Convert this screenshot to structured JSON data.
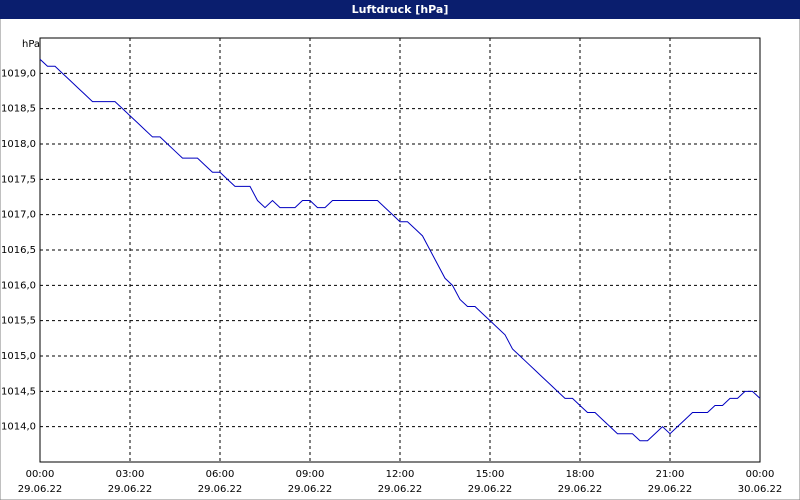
{
  "chart_data": {
    "type": "line",
    "title": "Luftdruck [hPa]",
    "y_unit": "hPa",
    "x": [
      0,
      0.25,
      0.5,
      0.75,
      1,
      1.25,
      1.5,
      1.75,
      2,
      2.25,
      2.5,
      2.75,
      3,
      3.25,
      3.5,
      3.75,
      4,
      4.25,
      4.5,
      4.75,
      5,
      5.25,
      5.5,
      5.75,
      6,
      6.25,
      6.5,
      6.75,
      7,
      7.25,
      7.5,
      7.75,
      8,
      8.25,
      8.5,
      8.75,
      9,
      9.25,
      9.5,
      9.75,
      10,
      10.25,
      10.5,
      10.75,
      11,
      11.25,
      11.5,
      11.75,
      12,
      12.25,
      12.5,
      12.75,
      13,
      13.25,
      13.5,
      13.75,
      14,
      14.25,
      14.5,
      14.75,
      15,
      15.25,
      15.5,
      15.75,
      16,
      16.25,
      16.5,
      16.75,
      17,
      17.25,
      17.5,
      17.75,
      18,
      18.25,
      18.5,
      18.75,
      19,
      19.25,
      19.5,
      19.75,
      20,
      20.25,
      20.5,
      20.75,
      21,
      21.25,
      21.5,
      21.75,
      22,
      22.25,
      22.5,
      22.75,
      23,
      23.25,
      23.5,
      23.75,
      24
    ],
    "series": [
      {
        "color": "#0000c0",
        "values": [
          1019.2,
          1019.1,
          1019.1,
          1019.0,
          1018.9,
          1018.8,
          1018.7,
          1018.6,
          1018.6,
          1018.6,
          1018.6,
          1018.5,
          1018.4,
          1018.3,
          1018.2,
          1018.1,
          1018.1,
          1018.0,
          1017.9,
          1017.8,
          1017.8,
          1017.8,
          1017.7,
          1017.6,
          1017.6,
          1017.5,
          1017.4,
          1017.4,
          1017.4,
          1017.2,
          1017.1,
          1017.2,
          1017.1,
          1017.1,
          1017.1,
          1017.2,
          1017.2,
          1017.1,
          1017.1,
          1017.2,
          1017.2,
          1017.2,
          1017.2,
          1017.2,
          1017.2,
          1017.2,
          1017.1,
          1017.0,
          1016.9,
          1016.9,
          1016.8,
          1016.7,
          1016.5,
          1016.3,
          1016.1,
          1016.0,
          1015.8,
          1015.7,
          1015.7,
          1015.6,
          1015.5,
          1015.4,
          1015.3,
          1015.1,
          1015.0,
          1014.9,
          1014.8,
          1014.7,
          1014.6,
          1014.5,
          1014.4,
          1014.4,
          1014.3,
          1014.2,
          1014.2,
          1014.1,
          1014.0,
          1013.9,
          1013.9,
          1013.9,
          1013.8,
          1013.8,
          1013.9,
          1014.0,
          1013.9,
          1014.0,
          1014.1,
          1014.2,
          1014.2,
          1014.2,
          1014.3,
          1014.3,
          1014.4,
          1014.4,
          1014.5,
          1014.5,
          1014.4
        ]
      }
    ],
    "xlim": [
      0,
      24
    ],
    "xticks": [
      {
        "value": 0,
        "label": "00:00",
        "date": "29.06.22"
      },
      {
        "value": 3,
        "label": "03:00",
        "date": "29.06.22"
      },
      {
        "value": 6,
        "label": "06:00",
        "date": "29.06.22"
      },
      {
        "value": 9,
        "label": "09:00",
        "date": "29.06.22"
      },
      {
        "value": 12,
        "label": "12:00",
        "date": "29.06.22"
      },
      {
        "value": 15,
        "label": "15:00",
        "date": "29.06.22"
      },
      {
        "value": 18,
        "label": "18:00",
        "date": "29.06.22"
      },
      {
        "value": 21,
        "label": "21:00",
        "date": "29.06.22"
      },
      {
        "value": 24,
        "label": "00:00",
        "date": "30.06.22"
      }
    ],
    "ylim": [
      1013.5,
      1019.5
    ],
    "yticks": [
      {
        "value": 1014,
        "label": "1014,0"
      },
      {
        "value": 1014.5,
        "label": "1014,5"
      },
      {
        "value": 1015,
        "label": "1015,0"
      },
      {
        "value": 1015.5,
        "label": "1015,5"
      },
      {
        "value": 1016,
        "label": "1016,0"
      },
      {
        "value": 1016.5,
        "label": "1016,5"
      },
      {
        "value": 1017,
        "label": "1017,0"
      },
      {
        "value": 1017.5,
        "label": "1017,5"
      },
      {
        "value": 1018,
        "label": "1018,0"
      },
      {
        "value": 1018.5,
        "label": "1018,5"
      },
      {
        "value": 1019,
        "label": "1019,0"
      }
    ],
    "grid": true
  }
}
